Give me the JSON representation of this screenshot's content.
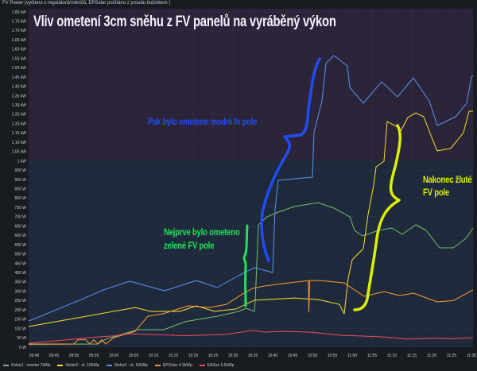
{
  "panel": {
    "title": "FV Power (vyčteno z regulátorů/měničů, EPSolar počítáno z proudu bočníkem )"
  },
  "annotations": {
    "main_title": "Vliv ometení 3cm sněhu z FV panelů na vyráběný výkon",
    "blue": "Pak bylo ometeno modré fv pole",
    "green_line1": "Nejprve bylo ometeno",
    "green_line2": "zelené FV pole",
    "yellow_line1": "Nakonec žluté",
    "yellow_line2": "FV pole"
  },
  "chart_data": {
    "type": "line",
    "title": "FV Power (vyčteno z regulátorů/měničů, EPSolar počítáno z proudu bočníkem )",
    "x_unit": "minutes after 09:00",
    "xlim": [
      38.6,
      150.4
    ],
    "ylim": [
      0,
      1800
    ],
    "ylabel": "W",
    "grid": true,
    "legend_position": "bottom-left",
    "threshold_band": {
      "above": 1000,
      "color_above": "#2b2438",
      "color_below": "#1e2a3b"
    },
    "x_ticks": [
      "09:40",
      "09:45",
      "09:50",
      "09:55",
      "10:00",
      "10:05",
      "10:10",
      "10:15",
      "10:20",
      "10:25",
      "10:30",
      "10:35",
      "10:40",
      "10:45",
      "10:50",
      "10:55",
      "11:00",
      "11:05",
      "11:10",
      "11:15",
      "11:20",
      "11:25",
      "11:30"
    ],
    "y_ticks": [
      "0 W",
      "50 W",
      "100 W",
      "150 W",
      "200 W",
      "250 W",
      "300 W",
      "350 W",
      "400 W",
      "450 W",
      "500 W",
      "550 W",
      "600 W",
      "650 W",
      "700 W",
      "750 W",
      "800 W",
      "850 W",
      "900 W",
      "950 W",
      "1 kW",
      "1.05 kW",
      "1.10 kW",
      "1.15 kW",
      "1.20 kW",
      "1.25 kW",
      "1.30 kW",
      "1.35 kW",
      "1.40 kW",
      "1.45 kW",
      "1.50 kW",
      "1.55 kW",
      "1.60 kW",
      "1.65 kW",
      "1.70 kW",
      "1.75 kW",
      "1.80 kW"
    ],
    "series": [
      {
        "name": "iSolar1 - master 7kWp",
        "color": "#73bf69",
        "x": [
          38.6,
          56,
          58,
          66,
          72.6,
          78,
          86,
          91.4,
          93.4,
          95.4,
          95.6,
          96.4,
          98.6,
          101.4,
          105.4,
          111.4,
          115.4,
          119.4,
          120.6,
          122.6,
          126.6,
          130,
          132.6,
          136,
          138.6,
          142,
          145.4,
          148.6,
          150.4
        ],
        "y": [
          15,
          17,
          43,
          94,
          94,
          137,
          166,
          192,
          209,
          192,
          243,
          657,
          700,
          725,
          755,
          776,
          747,
          700,
          627,
          597,
          627,
          640,
          606,
          657,
          627,
          533,
          533,
          584,
          640
        ]
      },
      {
        "name": "iSolar2 - st. 10kWp",
        "color": "#fade2a",
        "x": [
          38.6,
          65.4,
          69.4,
          76.6,
          80.8,
          85.4,
          90.8,
          95.4,
          105.4,
          111.4,
          116.8,
          118,
          119,
          120,
          122.8,
          124,
          125.4,
          126,
          128,
          128.8,
          131.4,
          132,
          134,
          136,
          138,
          140,
          141.4,
          144.8,
          148,
          149.4,
          150.4
        ],
        "y": [
          111,
          213,
          192,
          192,
          222,
          192,
          205,
          252,
          264,
          256,
          230,
          179,
          371,
          469,
          529,
          712,
          870,
          968,
          998,
          1212,
          1182,
          1152,
          1233,
          1258,
          1237,
          1126,
          1054,
          1067,
          1152,
          1267,
          1267
        ]
      },
      {
        "name": "iSolar3 - st. 16kWp",
        "color": "#5794f2",
        "x": [
          38.6,
          51.4,
          57.4,
          64,
          72.8,
          80.8,
          86,
          91.4,
          95.4,
          100,
          100.6,
          101.4,
          110,
          110.4,
          112.4,
          113.4,
          115.4,
          118.8,
          119.4,
          122.8,
          127.4,
          131.4,
          135.4,
          139.4,
          141.4,
          146,
          148.8,
          150,
          150.4
        ],
        "y": [
          140,
          252,
          307,
          354,
          303,
          358,
          320,
          384,
          427,
          401,
          742,
          896,
          913,
          1152,
          1322,
          1523,
          1566,
          1510,
          1395,
          1310,
          1425,
          1344,
          1446,
          1322,
          1190,
          1237,
          1310,
          1450,
          1460
        ]
      },
      {
        "name": "EPSolar 4.3kWp",
        "color": "#ff9830",
        "x": [
          38.6,
          50,
          51,
          53,
          54,
          55,
          56,
          57,
          58,
          60,
          65.4,
          68.6,
          72.4,
          78.8,
          84,
          88.4,
          92.4,
          95,
          97.8,
          102.4,
          109,
          109.1,
          109.3,
          112,
          118,
          120,
          123,
          128,
          132,
          135.4,
          141.4,
          145.4,
          150.4
        ],
        "y": [
          17,
          17,
          40,
          40,
          17,
          40,
          17,
          40,
          17,
          51,
          85,
          166,
          179,
          222,
          213,
          230,
          286,
          316,
          328,
          341,
          358,
          188,
          358,
          358,
          345,
          316,
          273,
          298,
          277,
          290,
          243,
          250,
          307
        ]
      },
      {
        "name": "EASun 5.5kWp",
        "color": "#f2495c",
        "x": [
          38.6,
          56,
          60,
          64,
          70,
          78,
          88,
          95,
          98,
          103,
          110,
          117,
          122,
          128,
          134,
          140,
          145,
          150.4
        ],
        "y": [
          21,
          55,
          60,
          72,
          68,
          62,
          68,
          90,
          81,
          85,
          80,
          64,
          60,
          55,
          43,
          48,
          45,
          51
        ]
      }
    ]
  }
}
